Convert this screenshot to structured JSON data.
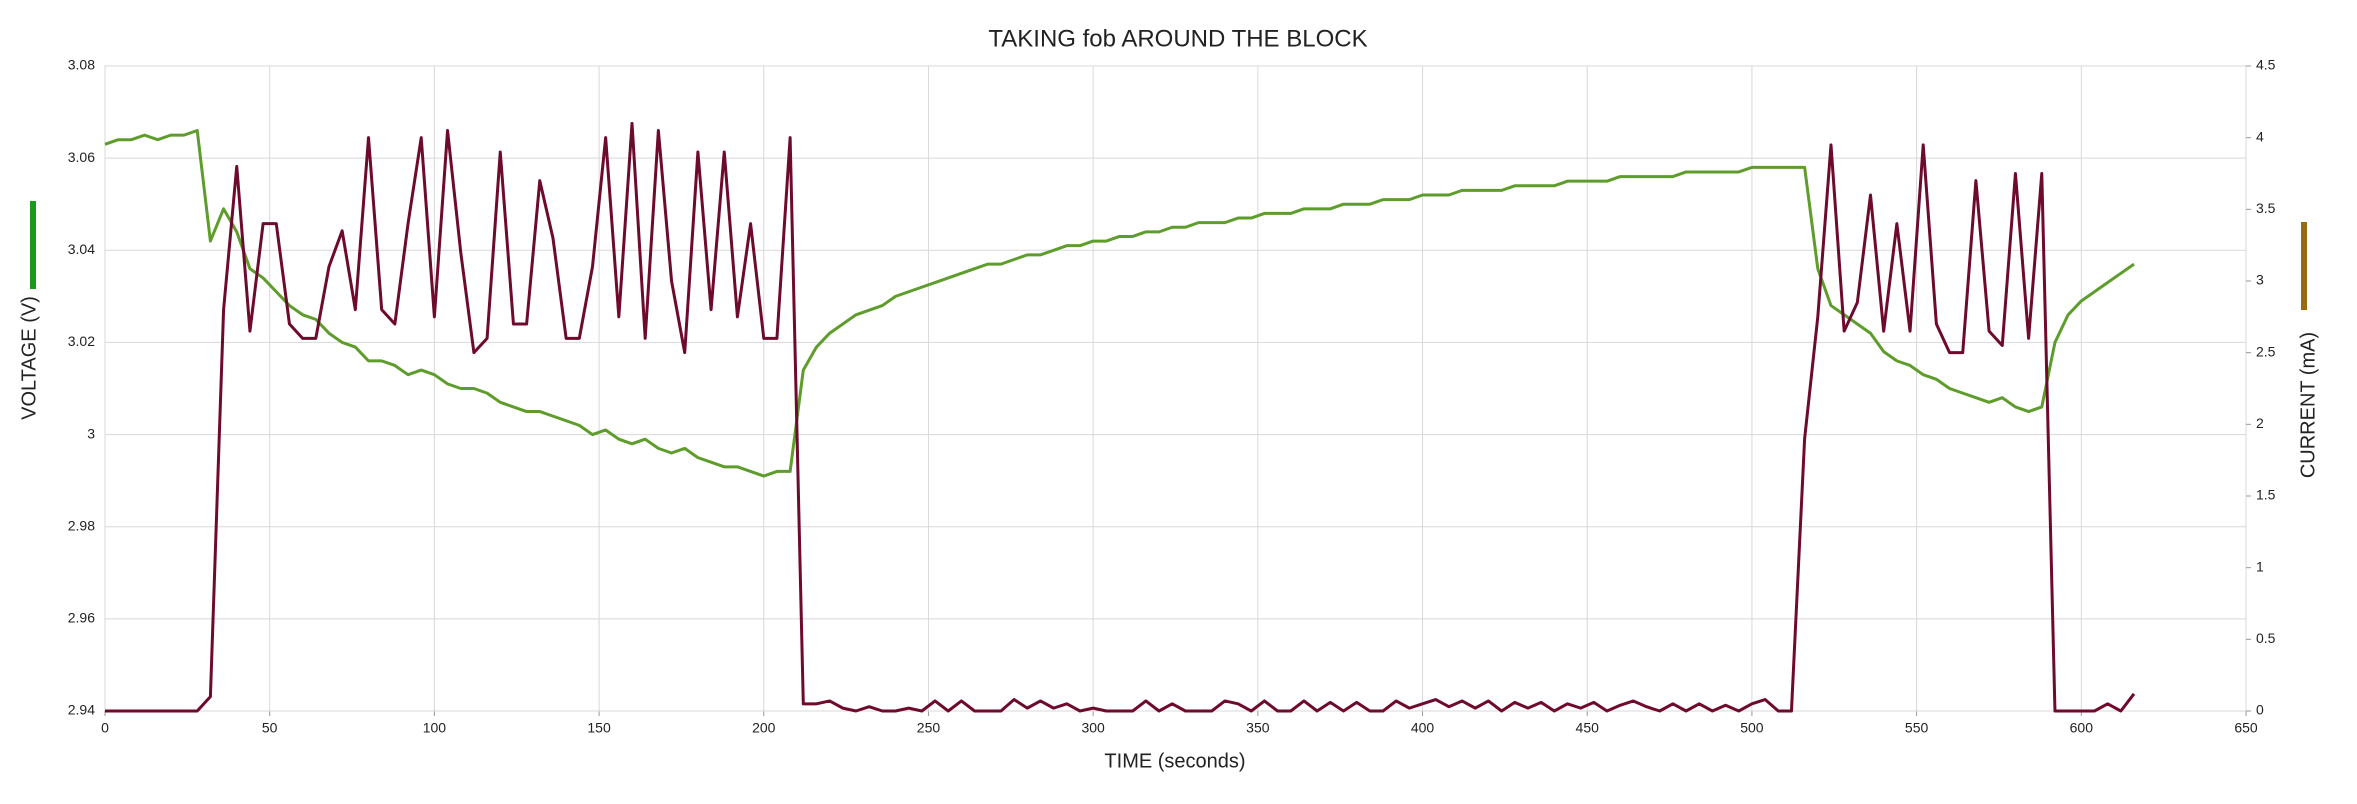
{
  "chart_data": {
    "type": "line",
    "title": "TAKING fob AROUND THE BLOCK",
    "x_label": "TIME (seconds)",
    "y_label": "VOLTAGE (V)",
    "y2_label": "CURRENT (mA)",
    "grid": true,
    "xlim": [
      0,
      650
    ],
    "xticks": [
      0,
      50,
      100,
      150,
      200,
      250,
      300,
      350,
      400,
      450,
      500,
      550,
      600,
      650
    ],
    "ylim": [
      2.94,
      3.08
    ],
    "yticks": [
      2.94,
      2.96,
      2.98,
      3,
      3.02,
      3.04,
      3.06,
      3.08
    ],
    "y2lim": [
      0,
      4.5
    ],
    "y2ticks": [
      0,
      0.5,
      1,
      1.5,
      2,
      2.5,
      3,
      3.5,
      4,
      4.5
    ],
    "x": [
      0,
      4,
      8,
      12,
      16,
      20,
      24,
      28,
      32,
      36,
      40,
      44,
      48,
      52,
      56,
      60,
      64,
      68,
      72,
      76,
      80,
      84,
      88,
      92,
      96,
      100,
      104,
      108,
      112,
      116,
      120,
      124,
      128,
      132,
      136,
      140,
      144,
      148,
      152,
      156,
      160,
      164,
      168,
      172,
      176,
      180,
      184,
      188,
      192,
      196,
      200,
      204,
      208,
      212,
      216,
      220,
      224,
      228,
      232,
      236,
      240,
      244,
      248,
      252,
      256,
      260,
      264,
      268,
      272,
      276,
      280,
      284,
      288,
      292,
      296,
      300,
      304,
      308,
      312,
      316,
      320,
      324,
      328,
      332,
      336,
      340,
      344,
      348,
      352,
      356,
      360,
      364,
      368,
      372,
      376,
      380,
      384,
      388,
      392,
      396,
      400,
      404,
      408,
      412,
      416,
      420,
      424,
      428,
      432,
      436,
      440,
      444,
      448,
      452,
      456,
      460,
      464,
      468,
      472,
      476,
      480,
      484,
      488,
      492,
      496,
      500,
      504,
      508,
      512,
      516,
      520,
      524,
      528,
      532,
      536,
      540,
      544,
      548,
      552,
      556,
      560,
      564,
      568,
      572,
      576,
      580,
      584,
      588,
      592,
      596,
      600,
      604,
      608,
      612,
      616
    ],
    "series": [
      {
        "name": "VOLTAGE (V)",
        "color": "#5e9c2b",
        "values": [
          3.063,
          3.064,
          3.064,
          3.065,
          3.064,
          3.065,
          3.065,
          3.066,
          3.042,
          3.049,
          3.044,
          3.036,
          3.034,
          3.031,
          3.028,
          3.026,
          3.025,
          3.022,
          3.02,
          3.019,
          3.016,
          3.016,
          3.015,
          3.013,
          3.014,
          3.013,
          3.011,
          3.01,
          3.01,
          3.009,
          3.007,
          3.006,
          3.005,
          3.005,
          3.004,
          3.003,
          3.002,
          3.0,
          3.001,
          2.999,
          2.998,
          2.999,
          2.997,
          2.996,
          2.997,
          2.995,
          2.994,
          2.993,
          2.993,
          2.992,
          2.991,
          2.992,
          2.992,
          3.014,
          3.019,
          3.022,
          3.024,
          3.026,
          3.027,
          3.028,
          3.03,
          3.031,
          3.032,
          3.033,
          3.034,
          3.035,
          3.036,
          3.037,
          3.037,
          3.038,
          3.039,
          3.039,
          3.04,
          3.041,
          3.041,
          3.042,
          3.042,
          3.043,
          3.043,
          3.044,
          3.044,
          3.045,
          3.045,
          3.046,
          3.046,
          3.046,
          3.047,
          3.047,
          3.048,
          3.048,
          3.048,
          3.049,
          3.049,
          3.049,
          3.05,
          3.05,
          3.05,
          3.051,
          3.051,
          3.051,
          3.052,
          3.052,
          3.052,
          3.053,
          3.053,
          3.053,
          3.053,
          3.054,
          3.054,
          3.054,
          3.054,
          3.055,
          3.055,
          3.055,
          3.055,
          3.056,
          3.056,
          3.056,
          3.056,
          3.056,
          3.057,
          3.057,
          3.057,
          3.057,
          3.057,
          3.058,
          3.058,
          3.058,
          3.058,
          3.058,
          3.036,
          3.028,
          3.026,
          3.024,
          3.022,
          3.018,
          3.016,
          3.015,
          3.013,
          3.012,
          3.01,
          3.009,
          3.008,
          3.007,
          3.008,
          3.006,
          3.005,
          3.006,
          3.02,
          3.026,
          3.029,
          3.031,
          3.033,
          3.035,
          3.037
        ]
      },
      {
        "name": "CURRENT (mA)",
        "color": "#6e0a2e",
        "axis": "y2",
        "values": [
          0,
          0,
          0,
          0,
          0,
          0,
          0,
          0,
          0.1,
          2.8,
          3.8,
          2.65,
          3.4,
          3.4,
          2.7,
          2.6,
          2.6,
          3.1,
          3.35,
          2.8,
          4.0,
          2.8,
          2.7,
          3.4,
          4.0,
          2.75,
          4.05,
          3.2,
          2.5,
          2.6,
          3.9,
          2.7,
          2.7,
          3.7,
          3.3,
          2.6,
          2.6,
          3.1,
          4.0,
          2.75,
          4.1,
          2.6,
          4.05,
          3.0,
          2.5,
          3.9,
          2.8,
          3.9,
          2.75,
          3.4,
          2.6,
          2.6,
          4.0,
          0.05,
          0.05,
          0.07,
          0.02,
          0,
          0.03,
          0,
          0,
          0.02,
          0,
          0.07,
          0,
          0.07,
          0,
          0,
          0,
          0.08,
          0.02,
          0.07,
          0.02,
          0.05,
          0,
          0.02,
          0,
          0,
          0,
          0.07,
          0,
          0.05,
          0,
          0,
          0,
          0.07,
          0.05,
          0,
          0.07,
          0,
          0,
          0.07,
          0,
          0.06,
          0,
          0.06,
          0,
          0,
          0.07,
          0.02,
          0.05,
          0.08,
          0.03,
          0.07,
          0.02,
          0.07,
          0,
          0.06,
          0.02,
          0.06,
          0,
          0.05,
          0.02,
          0.06,
          0,
          0.04,
          0.07,
          0.03,
          0,
          0.05,
          0,
          0.05,
          0,
          0.04,
          0,
          0.05,
          0.08,
          0,
          0,
          1.9,
          2.75,
          3.95,
          2.65,
          2.85,
          3.6,
          2.65,
          3.4,
          2.65,
          3.95,
          2.7,
          2.5,
          2.5,
          3.7,
          2.65,
          2.55,
          3.75,
          2.6,
          3.75,
          0,
          0,
          0,
          0,
          0.05,
          0,
          0.12
        ]
      }
    ]
  }
}
